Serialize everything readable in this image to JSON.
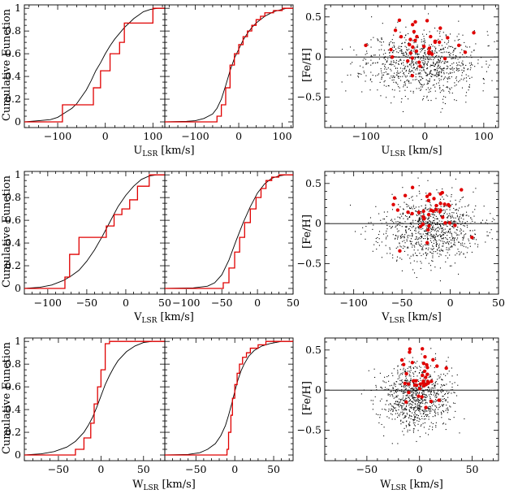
{
  "chart_data": [
    {
      "id": "cdf-u-left",
      "type": "line",
      "xlim": [
        -170,
        125
      ],
      "ylim": [
        -0.05,
        1.03
      ],
      "xticks": [
        -100,
        0,
        100
      ],
      "yticks": [
        0,
        0.2,
        0.4,
        0.6,
        0.8,
        1
      ],
      "ylabel": "Cumulative Function",
      "series": [
        {
          "name": "",
          "color": "#000000",
          "step": false,
          "x": [
            -170,
            -140,
            -115,
            -100,
            -85,
            -70,
            -60,
            -50,
            -40,
            -30,
            -20,
            -10,
            0,
            10,
            20,
            30,
            40,
            50,
            60,
            70,
            80,
            95,
            110,
            125
          ],
          "y": [
            0,
            0.01,
            0.02,
            0.04,
            0.08,
            0.12,
            0.16,
            0.22,
            0.28,
            0.36,
            0.45,
            0.52,
            0.6,
            0.67,
            0.73,
            0.78,
            0.83,
            0.87,
            0.91,
            0.94,
            0.97,
            0.99,
            1,
            1
          ]
        },
        {
          "name": "",
          "color": "#e00000",
          "step": true,
          "x": [
            -170,
            -100,
            -90,
            -40,
            -25,
            -10,
            0,
            10,
            20,
            30,
            40,
            50,
            100,
            125
          ],
          "y": [
            0,
            0,
            0.15,
            0.15,
            0.3,
            0.45,
            0.45,
            0.6,
            0.6,
            0.7,
            0.87,
            0.87,
            1,
            1
          ]
        }
      ]
    },
    {
      "id": "cdf-u-right",
      "type": "line",
      "xlim": [
        -170,
        125
      ],
      "ylim": [
        -0.05,
        1.03
      ],
      "xticks": [
        -100,
        0,
        100
      ],
      "yticks": [
        0,
        0.2,
        0.4,
        0.6,
        0.8,
        1
      ],
      "series": [
        {
          "name": "",
          "color": "#000000",
          "step": false,
          "x": [
            -170,
            -120,
            -100,
            -80,
            -60,
            -50,
            -40,
            -30,
            -20,
            -10,
            0,
            10,
            20,
            30,
            40,
            50,
            60,
            70,
            80,
            90,
            100,
            110,
            125
          ],
          "y": [
            0,
            0.005,
            0.01,
            0.03,
            0.07,
            0.12,
            0.2,
            0.32,
            0.45,
            0.56,
            0.64,
            0.72,
            0.78,
            0.83,
            0.87,
            0.9,
            0.93,
            0.95,
            0.97,
            0.98,
            0.99,
            1,
            1
          ]
        },
        {
          "name": "",
          "color": "#e00000",
          "step": true,
          "x": [
            -170,
            -60,
            -50,
            -40,
            -30,
            -20,
            -10,
            0,
            10,
            20,
            30,
            40,
            50,
            60,
            80,
            100,
            125
          ],
          "y": [
            0,
            0,
            0.05,
            0.15,
            0.3,
            0.5,
            0.6,
            0.68,
            0.75,
            0.8,
            0.85,
            0.9,
            0.93,
            0.96,
            0.98,
            1,
            1
          ]
        }
      ]
    },
    {
      "id": "scatter-u",
      "type": "scatter",
      "xlim": [
        -170,
        125
      ],
      "ylim": [
        -0.88,
        0.65
      ],
      "xticks": [
        -100,
        0,
        100
      ],
      "yticks": [
        -0.5,
        0,
        0.5
      ],
      "ylabel": "[Fe/H]",
      "hline": 0,
      "gen": {
        "seed": 11,
        "n": 900,
        "xmean": -5,
        "xsd": 48,
        "ymean": -0.08,
        "ysd": 0.2,
        "redN": 38,
        "rxmean": 0,
        "rxsd": 40,
        "rymean": 0.15,
        "rysd": 0.17
      },
      "series": [
        {
          "name": "",
          "color": "#000000",
          "x": [],
          "y": []
        },
        {
          "name": "",
          "color": "#e00000",
          "x": [],
          "y": []
        }
      ]
    },
    {
      "id": "cdf-v-left",
      "type": "line",
      "xlim": [
        -130,
        50
      ],
      "ylim": [
        -0.05,
        1.03
      ],
      "xticks": [
        -100,
        -50,
        0,
        50
      ],
      "yticks": [
        0,
        0.2,
        0.4,
        0.6,
        0.8,
        1
      ],
      "ylabel": "Cumulative Function",
      "series": [
        {
          "name": "",
          "color": "#000000",
          "step": false,
          "x": [
            -130,
            -110,
            -95,
            -80,
            -70,
            -60,
            -50,
            -40,
            -30,
            -20,
            -10,
            0,
            10,
            20,
            30,
            40,
            50
          ],
          "y": [
            0,
            0.01,
            0.03,
            0.07,
            0.11,
            0.16,
            0.24,
            0.34,
            0.46,
            0.59,
            0.72,
            0.82,
            0.9,
            0.96,
            0.99,
            1,
            1
          ]
        },
        {
          "name": "",
          "color": "#e00000",
          "step": true,
          "x": [
            -130,
            -83,
            -78,
            -72,
            -60,
            -50,
            -40,
            -25,
            -15,
            -5,
            5,
            15,
            30,
            50
          ],
          "y": [
            0,
            0,
            0.1,
            0.3,
            0.45,
            0.45,
            0.45,
            0.55,
            0.65,
            0.7,
            0.78,
            0.9,
            1,
            1
          ]
        }
      ]
    },
    {
      "id": "cdf-v-right",
      "type": "line",
      "xlim": [
        -130,
        50
      ],
      "ylim": [
        -0.05,
        1.03
      ],
      "xticks": [
        -100,
        -50,
        0,
        50
      ],
      "yticks": [
        0,
        0.2,
        0.4,
        0.6,
        0.8,
        1
      ],
      "series": [
        {
          "name": "",
          "color": "#000000",
          "step": false,
          "x": [
            -130,
            -90,
            -70,
            -60,
            -50,
            -40,
            -30,
            -20,
            -10,
            0,
            10,
            20,
            30,
            40,
            50
          ],
          "y": [
            0,
            0.005,
            0.02,
            0.05,
            0.12,
            0.25,
            0.42,
            0.58,
            0.72,
            0.84,
            0.92,
            0.97,
            0.99,
            1,
            1
          ]
        },
        {
          "name": "",
          "color": "#e00000",
          "step": true,
          "x": [
            -130,
            -52,
            -48,
            -40,
            -32,
            -25,
            -18,
            -10,
            -2,
            5,
            12,
            20,
            30,
            50
          ],
          "y": [
            0,
            0,
            0.05,
            0.18,
            0.32,
            0.45,
            0.58,
            0.7,
            0.8,
            0.88,
            0.95,
            0.98,
            1,
            1
          ]
        }
      ]
    },
    {
      "id": "scatter-v",
      "type": "scatter",
      "xlim": [
        -130,
        50
      ],
      "ylim": [
        -0.88,
        0.65
      ],
      "xticks": [
        -100,
        -50,
        0,
        50
      ],
      "yticks": [
        -0.5,
        0,
        0.5
      ],
      "ylabel": "[Fe/H]",
      "hline": 0,
      "gen": {
        "seed": 23,
        "n": 900,
        "xmean": -22,
        "xsd": 26,
        "ymean": -0.08,
        "ysd": 0.2,
        "redN": 40,
        "rxmean": -15,
        "rxsd": 20,
        "rymean": 0.12,
        "rysd": 0.17
      },
      "series": [
        {
          "name": "",
          "color": "#000000",
          "x": [],
          "y": []
        },
        {
          "name": "",
          "color": "#e00000",
          "x": [],
          "y": []
        }
      ]
    },
    {
      "id": "cdf-w-left",
      "type": "line",
      "xlim": [
        -90,
        75
      ],
      "ylim": [
        -0.05,
        1.03
      ],
      "xticks": [
        -50,
        0,
        50
      ],
      "yticks": [
        0,
        0.2,
        0.4,
        0.6,
        0.8,
        1
      ],
      "ylabel": "Cumulative Function",
      "series": [
        {
          "name": "",
          "color": "#000000",
          "step": false,
          "x": [
            -90,
            -70,
            -55,
            -40,
            -30,
            -20,
            -15,
            -10,
            -5,
            0,
            5,
            10,
            15,
            20,
            30,
            40,
            50,
            60,
            75
          ],
          "y": [
            0,
            0.01,
            0.03,
            0.07,
            0.12,
            0.2,
            0.26,
            0.33,
            0.42,
            0.52,
            0.62,
            0.7,
            0.77,
            0.83,
            0.91,
            0.96,
            0.99,
            1,
            1
          ]
        },
        {
          "name": "",
          "color": "#e00000",
          "step": true,
          "x": [
            -90,
            -50,
            -30,
            -20,
            -12,
            -8,
            -4,
            0,
            5,
            10,
            20,
            75
          ],
          "y": [
            0,
            0,
            0.05,
            0.15,
            0.28,
            0.45,
            0.6,
            0.75,
            0.98,
            1,
            1,
            1
          ]
        }
      ]
    },
    {
      "id": "cdf-w-right",
      "type": "line",
      "xlim": [
        -90,
        75
      ],
      "ylim": [
        -0.05,
        1.03
      ],
      "xticks": [
        -50,
        0,
        50
      ],
      "yticks": [
        0,
        0.2,
        0.4,
        0.6,
        0.8,
        1
      ],
      "series": [
        {
          "name": "",
          "color": "#000000",
          "step": false,
          "x": [
            -90,
            -60,
            -45,
            -35,
            -25,
            -18,
            -12,
            -8,
            -4,
            0,
            4,
            8,
            12,
            18,
            25,
            35,
            45,
            60,
            75
          ],
          "y": [
            0,
            0.005,
            0.02,
            0.05,
            0.1,
            0.17,
            0.26,
            0.35,
            0.45,
            0.56,
            0.66,
            0.74,
            0.8,
            0.87,
            0.92,
            0.96,
            0.98,
            1,
            1
          ]
        },
        {
          "name": "",
          "color": "#e00000",
          "step": true,
          "x": [
            -90,
            -13,
            -10,
            -8,
            -5,
            -3,
            0,
            3,
            6,
            10,
            15,
            20,
            30,
            40,
            75
          ],
          "y": [
            0,
            0,
            0.05,
            0.2,
            0.35,
            0.5,
            0.62,
            0.72,
            0.8,
            0.86,
            0.9,
            0.94,
            0.97,
            1,
            1
          ]
        }
      ]
    },
    {
      "id": "scatter-w",
      "type": "scatter",
      "xlim": [
        -90,
        75
      ],
      "ylim": [
        -0.88,
        0.65
      ],
      "xticks": [
        -50,
        0,
        50
      ],
      "yticks": [
        -0.5,
        0,
        0.5
      ],
      "ylabel": "[Fe/H]",
      "hline": 0,
      "gen": {
        "seed": 37,
        "n": 900,
        "xmean": -3,
        "xsd": 16,
        "ymean": -0.08,
        "ysd": 0.2,
        "redN": 40,
        "rxmean": 0,
        "rxsd": 10,
        "rymean": 0.12,
        "rysd": 0.17
      },
      "series": [
        {
          "name": "",
          "color": "#000000",
          "x": [],
          "y": []
        },
        {
          "name": "",
          "color": "#e00000",
          "x": [],
          "y": []
        }
      ]
    }
  ],
  "labels": {
    "cumulative": "Cumulative Function",
    "feh": "[Fe/H]",
    "u_main": "U",
    "v_main": "V",
    "w_main": "W",
    "lsr_sub": "LSR",
    "units": "[km/s]"
  }
}
